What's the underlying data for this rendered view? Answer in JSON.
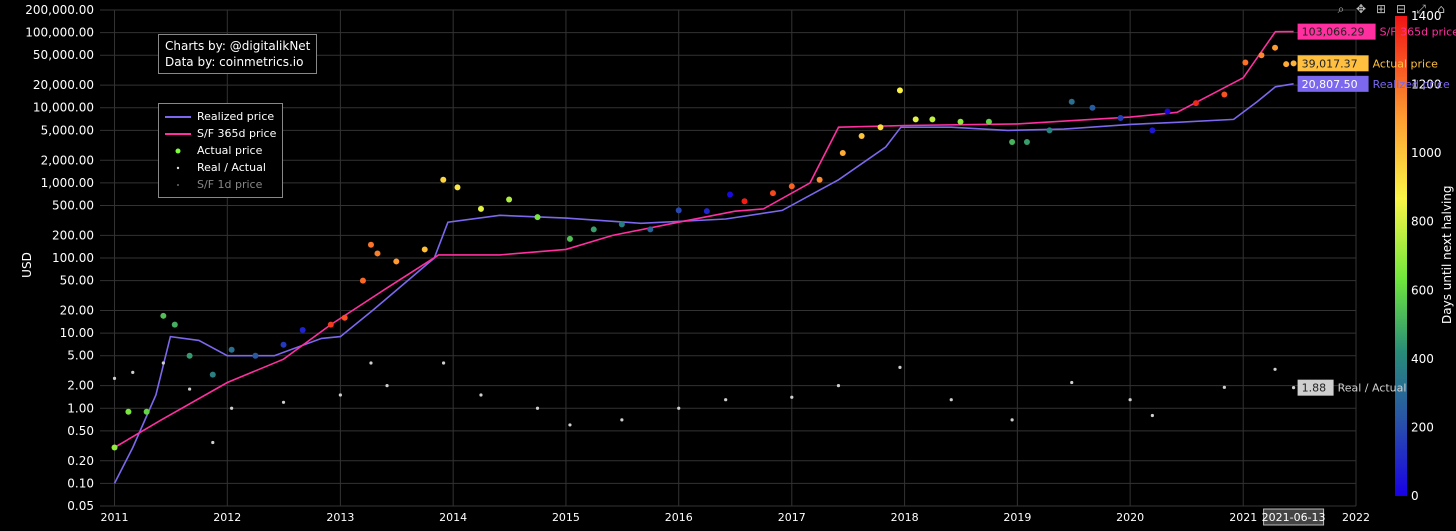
{
  "credit": {
    "line1": "Charts by: @digitalikNet",
    "line2": "Data by: coinmetrics.io"
  },
  "modebar": {
    "zoom_icon": "zoom-icon",
    "pan_icon": "pan-icon",
    "zoom_in_icon": "zoom-in-icon",
    "zoom_out_icon": "zoom-out-icon",
    "autoscale_icon": "autoscale-icon",
    "reset_icon": "reset-axes-icon"
  },
  "colors": {
    "realized": "#7b68ee",
    "sf365": "#ff2fa0",
    "realactual": "#cfcfcf",
    "sf1d": "#777777",
    "background": "#000000",
    "grid": "#333333"
  },
  "chart_data": {
    "type": "scatter",
    "yscale": "log",
    "ylabel": "USD",
    "xlabel": "",
    "xlim": [
      "2010-11-15",
      "2022-01-01"
    ],
    "ylim": [
      0.05,
      200000
    ],
    "x_ticks": [
      "2011",
      "2012",
      "2013",
      "2014",
      "2015",
      "2016",
      "2017",
      "2018",
      "2019",
      "2020",
      "2021",
      "2022"
    ],
    "y_ticks": [
      "200,000.00",
      "100,000.00",
      "50,000.00",
      "20,000.00",
      "10,000.00",
      "5,000.00",
      "2,000.00",
      "1,000.00",
      "500.00",
      "200.00",
      "100.00",
      "50.00",
      "20.00",
      "10.00",
      "5.00",
      "2.00",
      "1.00",
      "0.50",
      "0.20",
      "0.10",
      "0.05"
    ],
    "grid": true,
    "legend_position": "top-left",
    "series": [
      {
        "name": "Realized price",
        "style": "line",
        "color": "#7b68ee",
        "x": [
          "2011-01-01",
          "2011-03-01",
          "2011-05-15",
          "2011-07-01",
          "2011-10-01",
          "2012-01-01",
          "2012-06-01",
          "2012-11-01",
          "2013-01-01",
          "2013-04-15",
          "2013-11-01",
          "2013-12-15",
          "2014-06-01",
          "2015-01-01",
          "2015-09-01",
          "2016-06-01",
          "2016-12-01",
          "2017-06-01",
          "2017-11-01",
          "2017-12-20",
          "2018-06-01",
          "2018-12-01",
          "2019-06-01",
          "2020-01-01",
          "2020-06-01",
          "2020-12-01",
          "2021-02-15",
          "2021-04-15",
          "2021-06-13"
        ],
        "y": [
          0.1,
          0.3,
          1.5,
          9,
          8,
          5,
          5,
          8.5,
          9,
          20,
          100,
          300,
          370,
          340,
          290,
          330,
          430,
          1100,
          3000,
          5500,
          5500,
          5000,
          5200,
          6000,
          6400,
          7000,
          12000,
          19000,
          20807.5
        ]
      },
      {
        "name": "S/F 365d price",
        "style": "line",
        "color": "#ff2fa0",
        "x": [
          "2011-01-01",
          "2011-06-01",
          "2012-01-01",
          "2012-07-01",
          "2012-12-01",
          "2013-06-01",
          "2013-11-15",
          "2014-06-01",
          "2015-01-01",
          "2015-06-01",
          "2016-01-01",
          "2016-07-01",
          "2016-10-01",
          "2017-03-01",
          "2017-06-01",
          "2018-01-01",
          "2019-01-01",
          "2020-01-01",
          "2020-06-01",
          "2021-01-01",
          "2021-04-15",
          "2021-06-13"
        ],
        "y": [
          0.3,
          0.7,
          2.2,
          4.5,
          13,
          40,
          110,
          110,
          130,
          200,
          300,
          420,
          450,
          1000,
          5500,
          5800,
          6100,
          7500,
          8700,
          25000,
          103000,
          103066.29
        ]
      },
      {
        "name": "Actual price",
        "style": "markers",
        "colored_by": "Days until next halving",
        "x": [
          "2011-01-01",
          "2011-02-15",
          "2011-04-15",
          "2011-06-08",
          "2011-07-15",
          "2011-09-01",
          "2011-11-15",
          "2012-01-15",
          "2012-04-01",
          "2012-07-01",
          "2012-09-01",
          "2012-12-01",
          "2013-01-15",
          "2013-03-15",
          "2013-04-10",
          "2013-05-01",
          "2013-07-01",
          "2013-10-01",
          "2013-11-30",
          "2014-01-15",
          "2014-04-01",
          "2014-07-01",
          "2014-10-01",
          "2015-01-14",
          "2015-04-01",
          "2015-07-01",
          "2015-10-01",
          "2016-01-01",
          "2016-04-01",
          "2016-06-15",
          "2016-08-01",
          "2016-11-01",
          "2017-01-01",
          "2017-04-01",
          "2017-06-15",
          "2017-08-15",
          "2017-10-15",
          "2017-12-17",
          "2018-02-06",
          "2018-04-01",
          "2018-07-01",
          "2018-10-01",
          "2018-12-15",
          "2019-02-01",
          "2019-04-15",
          "2019-06-26",
          "2019-09-01",
          "2019-12-01",
          "2020-03-13",
          "2020-05-01",
          "2020-08-01",
          "2020-11-01",
          "2021-01-08",
          "2021-03-01",
          "2021-04-14",
          "2021-05-20",
          "2021-06-13"
        ],
        "y": [
          0.3,
          0.9,
          0.9,
          17,
          13,
          5,
          2.8,
          6,
          5,
          7,
          11,
          13,
          16,
          50,
          150,
          115,
          90,
          130,
          1100,
          870,
          450,
          600,
          350,
          180,
          240,
          280,
          240,
          430,
          420,
          700,
          570,
          730,
          900,
          1100,
          2500,
          4200,
          5500,
          17000,
          7000,
          7000,
          6500,
          6500,
          3500,
          3500,
          5000,
          12000,
          10000,
          7300,
          5000,
          8900,
          11500,
          15000,
          40000,
          50000,
          63000,
          38000,
          39017.37
        ]
      },
      {
        "name": "Real / Actual",
        "style": "markers",
        "color": "#cfcfcf",
        "x": [
          "2011-01-01",
          "2011-03-01",
          "2011-06-08",
          "2011-09-01",
          "2011-11-15",
          "2012-01-15",
          "2012-07-01",
          "2013-01-01",
          "2013-04-10",
          "2013-06-01",
          "2013-12-01",
          "2014-04-01",
          "2014-10-01",
          "2015-01-14",
          "2015-07-01",
          "2016-01-01",
          "2016-06-01",
          "2017-01-01",
          "2017-06-01",
          "2017-12-17",
          "2018-06-01",
          "2018-12-15",
          "2019-06-26",
          "2020-01-01",
          "2020-03-13",
          "2020-11-01",
          "2021-04-14",
          "2021-06-13"
        ],
        "y": [
          2.5,
          3,
          4,
          1.8,
          0.35,
          1,
          1.2,
          1.5,
          4,
          2,
          4,
          1.5,
          1,
          0.6,
          0.7,
          1,
          1.3,
          1.4,
          2,
          3.5,
          1.3,
          0.7,
          2.2,
          1.3,
          0.8,
          1.9,
          3.3,
          1.88
        ]
      }
    ],
    "end_labels": [
      {
        "value": "103,066.29",
        "name": "S/F 365d price"
      },
      {
        "value": "39,017.37",
        "name": "Actual price"
      },
      {
        "value": "20,807.50",
        "name": "Realized price"
      },
      {
        "value": "1.88",
        "name": "Real / Actual"
      }
    ],
    "hover_x_label": "2021-06-13",
    "colorbar": {
      "title": "Days until next halving",
      "range": [
        0,
        1400
      ],
      "ticks": [
        "0",
        "200",
        "400",
        "600",
        "800",
        "1000",
        "1200",
        "1400"
      ]
    }
  },
  "legend": {
    "items": [
      "Realized price",
      "S/F 365d price",
      "Actual price",
      "Real / Actual",
      "S/F 1d price"
    ]
  }
}
